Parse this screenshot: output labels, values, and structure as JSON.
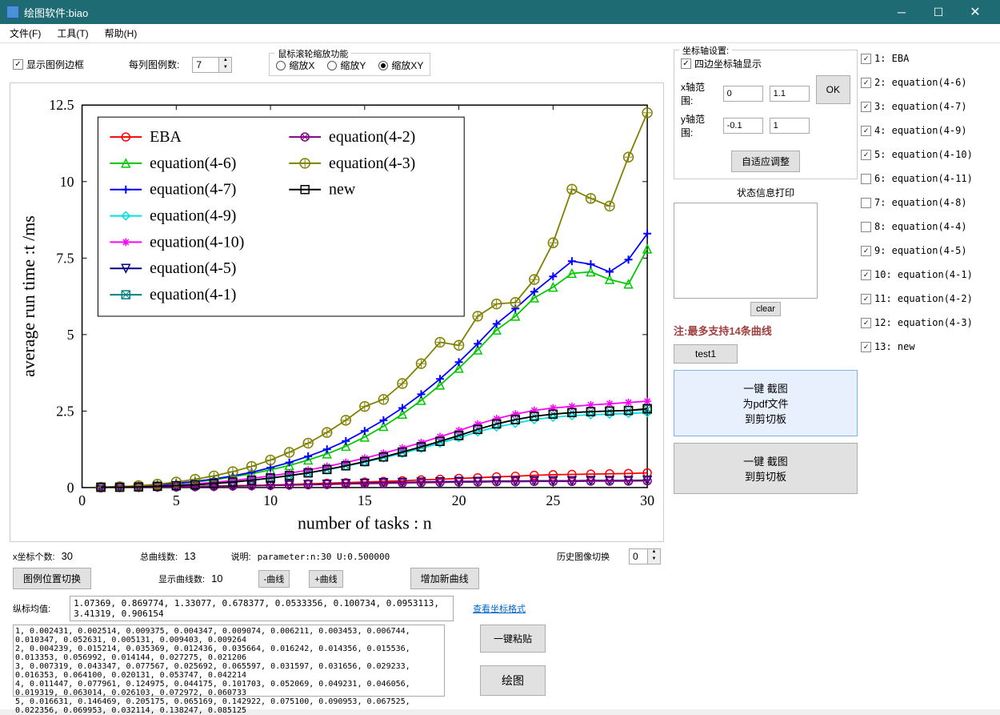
{
  "window": {
    "title": "绘图软件:biao"
  },
  "menu": {
    "file": "文件(F)",
    "tools": "工具(T)",
    "help": "帮助(H)"
  },
  "controls": {
    "show_legend_border": "显示图例边框",
    "legend_cols_label": "每列图例数:",
    "legend_cols_value": "7",
    "zoom_group": "鼠标滚轮缩放功能",
    "zoom_x": "缩放X",
    "zoom_y": "缩放Y",
    "zoom_xy": "缩放XY",
    "zoom_selected": "xy"
  },
  "chart": {
    "xlabel": "number of tasks : n",
    "ylabel": "average run time :t /ms",
    "xlim": [
      0,
      30
    ],
    "ylim": [
      0,
      12.5
    ],
    "xticks": [
      0,
      5,
      10,
      15,
      20,
      25,
      30
    ],
    "yticks": [
      0,
      2.5,
      5,
      7.5,
      10,
      12.5
    ],
    "legend_items": [
      {
        "label": "EBA",
        "color": "#ff0000",
        "marker": "o-open"
      },
      {
        "label": "equation(4-6)",
        "color": "#00c800",
        "marker": "triangle"
      },
      {
        "label": "equation(4-7)",
        "color": "#0000ff",
        "marker": "plus"
      },
      {
        "label": "equation(4-9)",
        "color": "#00e0e0",
        "marker": "diamond"
      },
      {
        "label": "equation(4-10)",
        "color": "#ff00ff",
        "marker": "star"
      },
      {
        "label": "equation(4-5)",
        "color": "#000080",
        "marker": "tri-down"
      },
      {
        "label": "equation(4-1)",
        "color": "#008080",
        "marker": "square-x"
      },
      {
        "label": "equation(4-2)",
        "color": "#800080",
        "marker": "o-x"
      },
      {
        "label": "equation(4-3)",
        "color": "#808000",
        "marker": "o-plus"
      },
      {
        "label": "new",
        "color": "#000000",
        "marker": "square"
      }
    ],
    "x_values": [
      1,
      2,
      3,
      4,
      5,
      6,
      7,
      8,
      9,
      10,
      11,
      12,
      13,
      14,
      15,
      16,
      17,
      18,
      19,
      20,
      21,
      22,
      23,
      24,
      25,
      26,
      27,
      28,
      29,
      30
    ],
    "series": {
      "EBA": {
        "color": "#ff0000",
        "marker": "o-open",
        "y": [
          0.01,
          0.01,
          0.02,
          0.02,
          0.03,
          0.04,
          0.05,
          0.06,
          0.07,
          0.08,
          0.1,
          0.12,
          0.14,
          0.16,
          0.18,
          0.2,
          0.22,
          0.25,
          0.27,
          0.3,
          0.32,
          0.35,
          0.37,
          0.4,
          0.42,
          0.43,
          0.44,
          0.45,
          0.46,
          0.48
        ]
      },
      "eq46": {
        "color": "#00c800",
        "marker": "triangle",
        "y": [
          0.01,
          0.02,
          0.04,
          0.08,
          0.12,
          0.18,
          0.25,
          0.35,
          0.45,
          0.58,
          0.72,
          0.9,
          1.1,
          1.35,
          1.65,
          2.0,
          2.4,
          2.85,
          3.35,
          3.9,
          4.5,
          5.15,
          5.6,
          6.2,
          6.55,
          7.0,
          7.05,
          6.8,
          6.65,
          7.8
        ]
      },
      "eq47": {
        "color": "#0000ff",
        "marker": "plus",
        "y": [
          0.01,
          0.02,
          0.05,
          0.09,
          0.14,
          0.2,
          0.28,
          0.38,
          0.5,
          0.65,
          0.82,
          1.02,
          1.25,
          1.52,
          1.85,
          2.2,
          2.6,
          3.05,
          3.55,
          4.1,
          4.7,
          5.35,
          5.85,
          6.4,
          6.9,
          7.4,
          7.3,
          7.05,
          7.45,
          8.3
        ]
      },
      "eq49": {
        "color": "#00e0e0",
        "marker": "diamond",
        "y": [
          0.01,
          0.01,
          0.02,
          0.04,
          0.06,
          0.09,
          0.13,
          0.18,
          0.24,
          0.31,
          0.39,
          0.48,
          0.58,
          0.7,
          0.83,
          0.97,
          1.12,
          1.28,
          1.45,
          1.63,
          1.82,
          1.98,
          2.1,
          2.22,
          2.3,
          2.35,
          2.38,
          2.4,
          2.42,
          2.45
        ]
      },
      "eq410": {
        "color": "#ff00ff",
        "marker": "star",
        "y": [
          0.01,
          0.02,
          0.03,
          0.05,
          0.08,
          0.12,
          0.17,
          0.23,
          0.3,
          0.38,
          0.47,
          0.57,
          0.69,
          0.82,
          0.96,
          1.12,
          1.29,
          1.47,
          1.66,
          1.86,
          2.07,
          2.25,
          2.4,
          2.52,
          2.6,
          2.65,
          2.7,
          2.74,
          2.78,
          2.82
        ]
      },
      "eq45": {
        "color": "#000080",
        "marker": "tri-down",
        "y": [
          0.01,
          0.01,
          0.01,
          0.02,
          0.02,
          0.03,
          0.04,
          0.05,
          0.06,
          0.07,
          0.08,
          0.1,
          0.11,
          0.13,
          0.14,
          0.16,
          0.17,
          0.18,
          0.19,
          0.2,
          0.2,
          0.21,
          0.21,
          0.22,
          0.22,
          0.22,
          0.23,
          0.23,
          0.23,
          0.24
        ]
      },
      "eq41": {
        "color": "#008080",
        "marker": "square-x",
        "y": [
          0.01,
          0.01,
          0.02,
          0.04,
          0.06,
          0.09,
          0.13,
          0.18,
          0.24,
          0.31,
          0.39,
          0.48,
          0.59,
          0.71,
          0.85,
          1.0,
          1.16,
          1.33,
          1.51,
          1.7,
          1.9,
          2.08,
          2.22,
          2.33,
          2.4,
          2.45,
          2.48,
          2.5,
          2.52,
          2.55
        ]
      },
      "eq42": {
        "color": "#800080",
        "marker": "o-x",
        "y": [
          0.01,
          0.01,
          0.01,
          0.02,
          0.02,
          0.03,
          0.04,
          0.05,
          0.06,
          0.07,
          0.08,
          0.09,
          0.1,
          0.12,
          0.13,
          0.14,
          0.15,
          0.16,
          0.17,
          0.18,
          0.18,
          0.19,
          0.19,
          0.2,
          0.2,
          0.2,
          0.21,
          0.21,
          0.21,
          0.22
        ]
      },
      "eq43": {
        "color": "#808000",
        "marker": "o-plus",
        "y": [
          0.01,
          0.03,
          0.06,
          0.11,
          0.18,
          0.27,
          0.38,
          0.52,
          0.69,
          0.9,
          1.15,
          1.45,
          1.8,
          2.2,
          2.65,
          2.88,
          3.4,
          4.05,
          4.75,
          4.65,
          5.6,
          6.0,
          6.05,
          6.8,
          8.0,
          9.75,
          9.45,
          9.2,
          10.8,
          12.25
        ]
      },
      "new": {
        "color": "#000000",
        "marker": "square",
        "y": [
          0.01,
          0.01,
          0.02,
          0.04,
          0.06,
          0.09,
          0.13,
          0.18,
          0.24,
          0.31,
          0.39,
          0.48,
          0.59,
          0.71,
          0.85,
          1.0,
          1.16,
          1.33,
          1.51,
          1.7,
          1.9,
          2.08,
          2.22,
          2.33,
          2.4,
          2.45,
          2.48,
          2.5,
          2.52,
          2.58
        ]
      }
    }
  },
  "bottom": {
    "x_count_label": "x坐标个数:",
    "x_count": "30",
    "total_curves_label": "总曲线数:",
    "total_curves": "13",
    "desc_label": "说明:",
    "desc_value": "parameter:n:30  U:0.500000",
    "history_label": "历史图像切换",
    "history_value": "0",
    "legend_pos_btn": "图例位置切换",
    "show_curves_label": "显示曲线数:",
    "show_curves": "10",
    "minus_curve": "-曲线",
    "plus_curve": "+曲线",
    "add_curve": "增加新曲线",
    "y_avg_label": "纵标均值:",
    "y_avg_values": "1.07369,  0.869774,  1.33077,  0.678377,  0.0533356,  0.100734,  0.0953113,  3.41319,  0.906154",
    "view_format": "查看坐标格式",
    "data_text": "1, 0.002431, 0.002514, 0.009375, 0.004347, 0.009074, 0.006211, 0.003453, 0.006744, 0.010347, 0.052631, 0.005131, 0.009403, 0.009264\n2, 0.004239, 0.015214, 0.035369, 0.012436, 0.035664, 0.016242, 0.014356, 0.015536, 0.013353, 0.056992, 0.014144, 0.027275, 0.021206\n3, 0.007319, 0.043347, 0.077567, 0.025692, 0.065597, 0.031597, 0.031656, 0.029233, 0.016353, 0.064100, 0.020131, 0.053747, 0.042214\n4, 0.011447, 0.077961, 0.124975, 0.044175, 0.101703, 0.052069, 0.049231, 0.046056, 0.019319, 0.063014, 0.026103, 0.072972, 0.060733\n5, 0.016631, 0.146469, 0.205175, 0.065169, 0.142922, 0.075100, 0.090953, 0.067525, 0.022356, 0.069953, 0.032114, 0.138247, 0.085125",
    "paste_btn": "一键粘贴",
    "draw_btn": "绘图"
  },
  "side": {
    "axis_title": "坐标轴设置:",
    "four_axis": "四边坐标轴显示",
    "x_range": "x轴范围:",
    "x_min": "0",
    "x_max": "1.1",
    "y_range": "y轴范围:",
    "y_min": "-0.1",
    "y_max": "1",
    "ok_btn": "OK",
    "auto_adjust": "自适应调整",
    "status_title": "状态信息打印",
    "clear_btn": "clear",
    "note": "注:最多支持14条曲线",
    "test_btn": "test1",
    "pdf_btn_l1": "一键 截图",
    "pdf_btn_l2": "为pdf文件",
    "pdf_btn_l3": "到剪切板",
    "clip_btn_l1": "一键 截图",
    "clip_btn_l2": "到剪切板"
  },
  "curves": [
    {
      "label": "1: EBA",
      "checked": true
    },
    {
      "label": "2: equation(4-6)",
      "checked": true
    },
    {
      "label": "3: equation(4-7)",
      "checked": true
    },
    {
      "label": "4: equation(4-9)",
      "checked": true
    },
    {
      "label": "5: equation(4-10)",
      "checked": true
    },
    {
      "label": "6: equation(4-11)",
      "checked": false
    },
    {
      "label": "7: equation(4-8)",
      "checked": false
    },
    {
      "label": "8: equation(4-4)",
      "checked": false
    },
    {
      "label": "9: equation(4-5)",
      "checked": true
    },
    {
      "label": "10: equation(4-1)",
      "checked": true
    },
    {
      "label": "11: equation(4-2)",
      "checked": true
    },
    {
      "label": "12: equation(4-3)",
      "checked": true
    },
    {
      "label": "13: new",
      "checked": true
    }
  ]
}
